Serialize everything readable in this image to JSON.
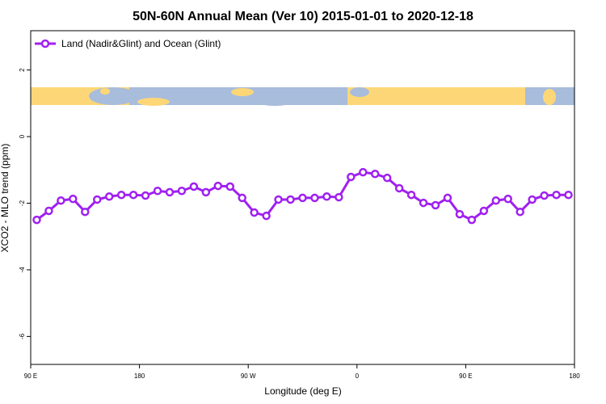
{
  "chart_data": {
    "type": "line",
    "title": "50N-60N Annual Mean (Ver 10)   2015-01-01 to 2020-12-18",
    "x_label": "Longitude (deg E)",
    "y_label": "XCO2 - MLO trend (ppm)",
    "xlim": [
      90,
      540
    ],
    "ylim": [
      -6.84,
      3.18
    ],
    "xticks": [
      {
        "value": 90,
        "label": "90 E"
      },
      {
        "value": 180,
        "label": "180"
      },
      {
        "value": 270,
        "label": "90 W"
      },
      {
        "value": 360,
        "label": "0"
      },
      {
        "value": 450,
        "label": "90 E"
      },
      {
        "value": 540,
        "label": "180"
      }
    ],
    "yticks": [
      -6,
      -4,
      -2,
      0,
      2
    ],
    "legend": "top-left",
    "x": [
      95,
      105,
      115,
      125,
      135,
      145,
      155,
      165,
      175,
      185,
      195,
      205,
      215,
      225,
      235,
      245,
      255,
      265,
      275,
      285,
      295,
      305,
      315,
      325,
      335,
      345,
      355,
      365,
      375,
      385,
      395,
      405,
      415,
      425,
      435,
      445,
      455,
      465,
      475,
      485,
      495,
      505,
      515,
      525,
      535
    ],
    "series": [
      {
        "name": "Land (Nadir&Glint) and Ocean (Glint)",
        "color": "#a020f0",
        "values": [
          -2.5,
          -2.23,
          -1.92,
          -1.87,
          -2.26,
          -1.89,
          -1.8,
          -1.75,
          -1.75,
          -1.77,
          -1.63,
          -1.67,
          -1.63,
          -1.5,
          -1.67,
          -1.48,
          -1.5,
          -1.84,
          -2.28,
          -2.38,
          -1.89,
          -1.89,
          -1.84,
          -1.84,
          -1.8,
          -1.82,
          -1.21,
          -1.07,
          -1.12,
          -1.24,
          -1.55,
          -1.75,
          -1.99,
          -2.06,
          -1.84,
          -2.33,
          -2.5,
          -2.23,
          -1.92,
          -1.87,
          -2.26,
          -1.89,
          -1.77,
          -1.75,
          -1.75
        ]
      }
    ]
  }
}
